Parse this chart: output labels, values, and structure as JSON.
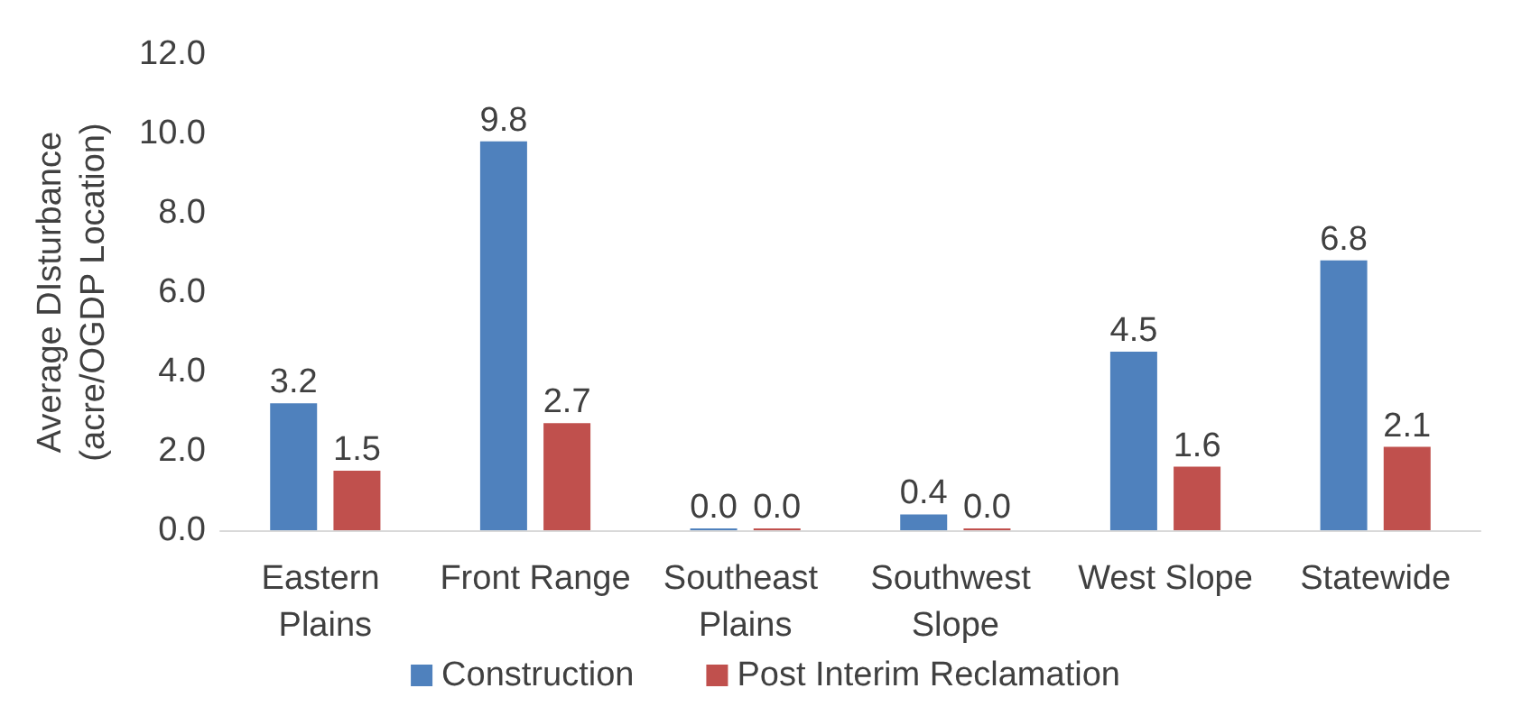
{
  "chart_data": {
    "type": "bar",
    "ylabel": "Average DIsturbance\n(acre/OGDP Location)",
    "categories": [
      "Eastern Plains",
      "Front Range",
      "Southeast Plains",
      "Southwest Slope",
      "West Slope",
      "Statewide"
    ],
    "series": [
      {
        "name": "Construction",
        "color": "#4f81bd",
        "values": [
          3.2,
          9.8,
          0.0,
          0.4,
          4.5,
          6.8
        ],
        "value_labels": [
          "3.2",
          "9.8",
          "0.0",
          "0.4",
          "4.5",
          "6.8"
        ]
      },
      {
        "name": "Post Interim Reclamation",
        "color": "#c0504d",
        "values": [
          1.5,
          2.7,
          0.0,
          0.0,
          1.6,
          2.1
        ],
        "value_labels": [
          "1.5",
          "2.7",
          "0.0",
          "0.0",
          "1.6",
          "2.1"
        ]
      }
    ],
    "ylim": [
      0,
      12
    ],
    "yticks": [
      {
        "value": 0,
        "label": "0.0"
      },
      {
        "value": 2,
        "label": "2.0"
      },
      {
        "value": 4,
        "label": "4.0"
      },
      {
        "value": 6,
        "label": "6.0"
      },
      {
        "value": 8,
        "label": "8.0"
      },
      {
        "value": 10,
        "label": "10.0"
      },
      {
        "value": 12,
        "label": "12.0"
      }
    ],
    "grid": false,
    "legend": "bottom"
  }
}
